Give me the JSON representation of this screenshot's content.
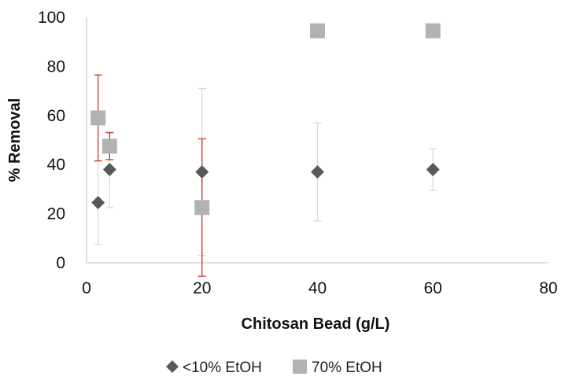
{
  "chart_data": {
    "type": "scatter",
    "title": "",
    "xlabel": "Chitosan Bead (g/L)",
    "ylabel": "% Removal",
    "xlim": [
      0,
      80
    ],
    "ylim": [
      0,
      100
    ],
    "xticks": [
      0,
      20,
      40,
      60,
      80
    ],
    "yticks": [
      0,
      20,
      40,
      60,
      80,
      100
    ],
    "x_tick_labels": [
      "0",
      "20",
      "40",
      "60",
      "80"
    ],
    "y_tick_labels": [
      "0",
      "20",
      "40",
      "60",
      "80",
      "100"
    ],
    "grid": false,
    "legend_position": "bottom",
    "series": [
      {
        "name": "<10% EtOH",
        "marker": "diamond",
        "color": "#595959",
        "points": [
          {
            "x": 2,
            "y": 24.5,
            "error": 17
          },
          {
            "x": 4,
            "y": 38,
            "error": 15.5
          },
          {
            "x": 20,
            "y": 37,
            "error": 34
          },
          {
            "x": 40,
            "y": 37,
            "error": 20
          },
          {
            "x": 60,
            "y": 38,
            "error": 8.5
          }
        ],
        "error_bar_color": "#d9d9d9"
      },
      {
        "name": "70% EtOH",
        "marker": "square",
        "color": "#b2b2b2",
        "points": [
          {
            "x": 2,
            "y": 59,
            "error": 17.5
          },
          {
            "x": 4,
            "y": 47.5,
            "error": 5.5
          },
          {
            "x": 20,
            "y": 22.5,
            "error": 28
          },
          {
            "x": 40,
            "y": 94.5,
            "error": 0
          },
          {
            "x": 60,
            "y": 94.5,
            "error": 0
          }
        ],
        "error_bar_color": "#c0392b"
      }
    ]
  }
}
